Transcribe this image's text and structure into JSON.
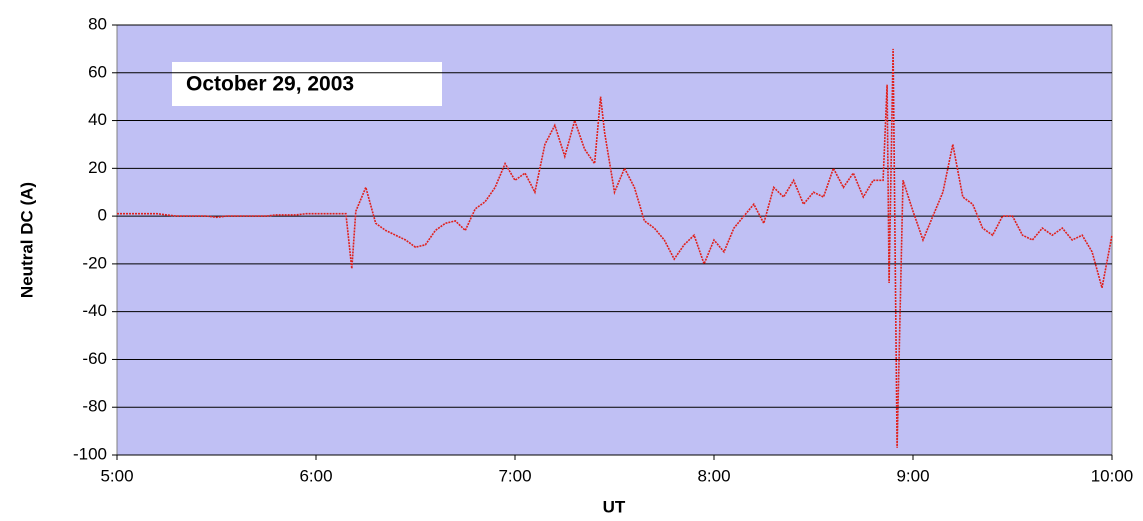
{
  "chart_data": {
    "type": "line",
    "annotation": "October 29, 2003",
    "x_label": "UT",
    "y_label": "Neutral DC (A)",
    "color": "#e0201c",
    "grid": true,
    "xlim": [
      5,
      10
    ],
    "xticks": [
      {
        "value": 5,
        "label": "5:00"
      },
      {
        "value": 6,
        "label": "6:00"
      },
      {
        "value": 7,
        "label": "7:00"
      },
      {
        "value": 8,
        "label": "8:00"
      },
      {
        "value": 9,
        "label": "9:00"
      },
      {
        "value": 10,
        "label": "10:00"
      }
    ],
    "ylim": [
      -100,
      80
    ],
    "yticks": [
      -100,
      -80,
      -60,
      -40,
      -20,
      0,
      20,
      40,
      60,
      80
    ],
    "x": [
      5.0,
      5.05,
      5.1,
      5.15,
      5.2,
      5.25,
      5.3,
      5.35,
      5.4,
      5.45,
      5.5,
      5.55,
      5.6,
      5.65,
      5.7,
      5.75,
      5.8,
      5.85,
      5.9,
      5.95,
      6.0,
      6.05,
      6.1,
      6.15,
      6.18,
      6.2,
      6.25,
      6.3,
      6.35,
      6.4,
      6.45,
      6.5,
      6.55,
      6.6,
      6.65,
      6.7,
      6.75,
      6.8,
      6.85,
      6.9,
      6.95,
      7.0,
      7.05,
      7.1,
      7.15,
      7.2,
      7.25,
      7.3,
      7.35,
      7.4,
      7.43,
      7.45,
      7.5,
      7.55,
      7.6,
      7.65,
      7.7,
      7.75,
      7.8,
      7.85,
      7.9,
      7.95,
      8.0,
      8.05,
      8.1,
      8.15,
      8.2,
      8.25,
      8.3,
      8.35,
      8.4,
      8.45,
      8.5,
      8.55,
      8.6,
      8.65,
      8.7,
      8.75,
      8.8,
      8.85,
      8.87,
      8.88,
      8.9,
      8.92,
      8.95,
      9.0,
      9.05,
      9.1,
      9.15,
      9.2,
      9.25,
      9.3,
      9.35,
      9.4,
      9.45,
      9.5,
      9.55,
      9.6,
      9.65,
      9.7,
      9.75,
      9.8,
      9.85,
      9.9,
      9.95,
      10.0
    ],
    "values": [
      1,
      1,
      1,
      1,
      1,
      0.5,
      0,
      0,
      0,
      0,
      -0.5,
      0,
      0,
      0,
      0,
      0,
      0.5,
      0.5,
      0.5,
      1,
      1,
      1,
      1,
      1,
      -22,
      2,
      12,
      -3,
      -6,
      -8,
      -10,
      -13,
      -12,
      -6,
      -3,
      -2,
      -6,
      3,
      6,
      12,
      22,
      15,
      18,
      10,
      30,
      38,
      25,
      40,
      28,
      22,
      50,
      35,
      10,
      20,
      12,
      -2,
      -5,
      -10,
      -18,
      -12,
      -8,
      -20,
      -10,
      -15,
      -5,
      0,
      5,
      -3,
      12,
      8,
      15,
      5,
      10,
      8,
      20,
      12,
      18,
      8,
      15,
      15,
      55,
      -28,
      70,
      -97,
      15,
      2,
      -10,
      0,
      10,
      30,
      8,
      5,
      -5,
      -8,
      0,
      0,
      -8,
      -10,
      -5,
      -8,
      -5,
      -10,
      -8,
      -15,
      -30,
      -8
    ]
  }
}
